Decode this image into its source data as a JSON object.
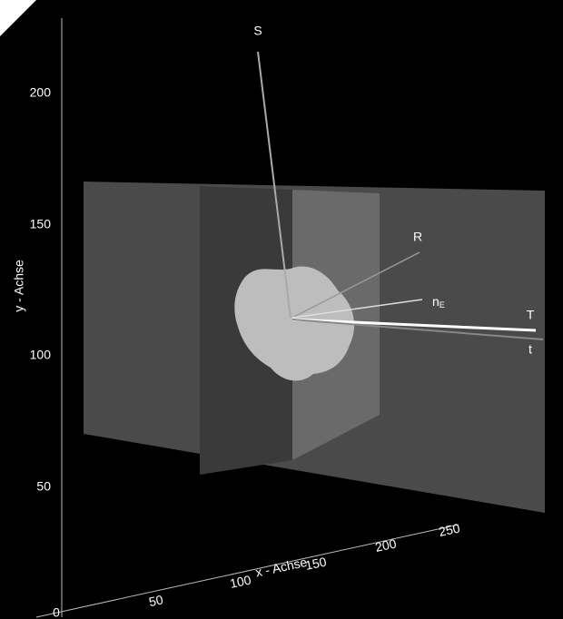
{
  "y_axis": {
    "label": "y - Achse",
    "ticks": [
      50,
      100,
      150,
      200
    ]
  },
  "x_axis": {
    "label": "x - Achse",
    "ticks": [
      50,
      100,
      150,
      200,
      250
    ]
  },
  "origin_tick": 0,
  "vectors": {
    "s": "S",
    "r": "R",
    "n": "n",
    "n_sub": "E",
    "big_t": "T",
    "small_t": "t"
  }
}
